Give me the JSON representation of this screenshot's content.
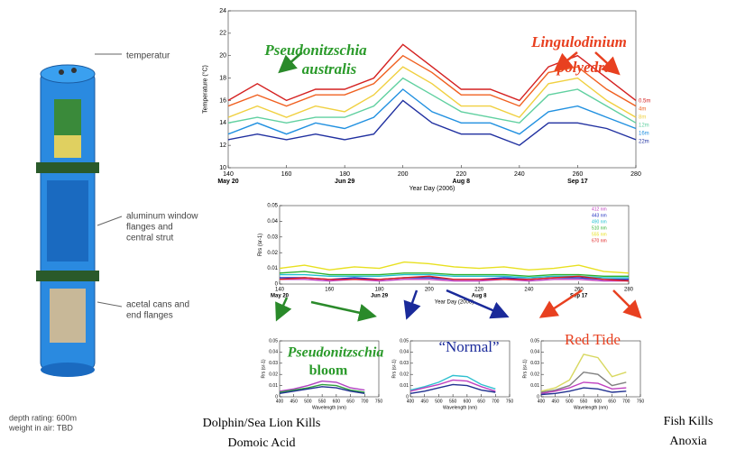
{
  "chart_data": [
    {
      "type": "line",
      "ylabel": "Temperature (°C)",
      "xlabel": "Year Day (2006)",
      "x": [
        140,
        150,
        160,
        170,
        180,
        190,
        200,
        210,
        220,
        230,
        240,
        250,
        260,
        270,
        280
      ],
      "xlim": [
        140,
        280
      ],
      "ylim": [
        10,
        24
      ],
      "xticks": [
        140,
        160,
        180,
        200,
        220,
        240,
        260,
        280
      ],
      "yticks": [
        10,
        12,
        14,
        16,
        18,
        20,
        22,
        24
      ],
      "date_ticks": [
        {
          "value": 140,
          "label": "May 20"
        },
        {
          "value": 180,
          "label": "Jun 29"
        },
        {
          "value": 220,
          "label": "Aug 8"
        },
        {
          "value": 260,
          "label": "Sep 17"
        }
      ],
      "series": [
        {
          "name": "0.5m",
          "color": "#d42020",
          "values": [
            16,
            17.5,
            16,
            17,
            17,
            18,
            21,
            19,
            17,
            17,
            16,
            19,
            20,
            18,
            16
          ]
        },
        {
          "name": "4m",
          "color": "#f06020",
          "values": [
            15.5,
            16.5,
            15.5,
            16.5,
            16.5,
            17.5,
            20,
            18.5,
            16.5,
            16.5,
            15.5,
            18.5,
            19,
            17,
            15.5
          ]
        },
        {
          "name": "8m",
          "color": "#f0d040",
          "values": [
            14.5,
            15.5,
            14.5,
            15.5,
            15,
            16.5,
            19,
            17.5,
            15.5,
            15.5,
            14.5,
            17.5,
            18,
            16,
            14.5
          ]
        },
        {
          "name": "12m",
          "color": "#60d0a0",
          "values": [
            14,
            14.5,
            14,
            14.5,
            14.5,
            15.5,
            18,
            16.5,
            15,
            14.5,
            14,
            16.5,
            17,
            15.5,
            14
          ]
        },
        {
          "name": "16m",
          "color": "#2090e0",
          "values": [
            13,
            14,
            13,
            14,
            13.5,
            14.5,
            17,
            15,
            14,
            14,
            13,
            15,
            15.5,
            14.5,
            13.5
          ]
        },
        {
          "name": "22m",
          "color": "#2030a0",
          "values": [
            12.5,
            13,
            12.5,
            13,
            12.5,
            13,
            16,
            14,
            13,
            13,
            12,
            14,
            14,
            13.5,
            12.5
          ]
        }
      ]
    },
    {
      "type": "line",
      "ylabel": "Rrs (sr-1)",
      "xlabel": "Year Day (2006)",
      "x": [
        140,
        150,
        160,
        170,
        180,
        190,
        200,
        210,
        220,
        230,
        240,
        250,
        260,
        270,
        280
      ],
      "xlim": [
        140,
        280
      ],
      "ylim": [
        0,
        0.05
      ],
      "xticks": [
        140,
        160,
        180,
        200,
        220,
        240,
        260,
        280
      ],
      "yticks": [
        0,
        0.01,
        0.02,
        0.03,
        0.04,
        0.05
      ],
      "date_ticks": [
        {
          "value": 140,
          "label": "May 20"
        },
        {
          "value": 180,
          "label": "Jun 29"
        },
        {
          "value": 220,
          "label": "Aug 8"
        },
        {
          "value": 260,
          "label": "Sep 17"
        }
      ],
      "series": [
        {
          "name": "412 nm",
          "color": "#c040c0",
          "values": [
            0.003,
            0.003,
            0.002,
            0.003,
            0.002,
            0.003,
            0.003,
            0.002,
            0.002,
            0.003,
            0.002,
            0.003,
            0.003,
            0.002,
            0.002
          ]
        },
        {
          "name": "443 nm",
          "color": "#2030c0",
          "values": [
            0.004,
            0.004,
            0.003,
            0.004,
            0.003,
            0.004,
            0.004,
            0.003,
            0.003,
            0.004,
            0.003,
            0.004,
            0.004,
            0.003,
            0.003
          ]
        },
        {
          "name": "490 nm",
          "color": "#20c0d0",
          "values": [
            0.006,
            0.006,
            0.005,
            0.005,
            0.005,
            0.006,
            0.006,
            0.005,
            0.005,
            0.005,
            0.004,
            0.005,
            0.005,
            0.004,
            0.004
          ]
        },
        {
          "name": "510 nm",
          "color": "#30b030",
          "values": [
            0.007,
            0.008,
            0.006,
            0.006,
            0.006,
            0.007,
            0.007,
            0.006,
            0.006,
            0.006,
            0.005,
            0.006,
            0.006,
            0.005,
            0.005
          ]
        },
        {
          "name": "555 nm",
          "color": "#e8e020",
          "values": [
            0.01,
            0.012,
            0.009,
            0.011,
            0.01,
            0.014,
            0.013,
            0.011,
            0.01,
            0.011,
            0.009,
            0.01,
            0.012,
            0.008,
            0.007
          ]
        },
        {
          "name": "670 nm",
          "color": "#e02020",
          "values": [
            0.003,
            0.004,
            0.003,
            0.003,
            0.003,
            0.004,
            0.005,
            0.003,
            0.003,
            0.003,
            0.003,
            0.004,
            0.005,
            0.003,
            0.002
          ]
        }
      ]
    },
    {
      "type": "line",
      "ylabel": "Rrs (sr-1)",
      "xlabel": "Wavelength (nm)",
      "x": [
        400,
        450,
        500,
        550,
        600,
        650,
        700
      ],
      "xlim": [
        400,
        750
      ],
      "ylim": [
        0,
        0.05
      ],
      "xticks": [
        400,
        450,
        500,
        550,
        600,
        650,
        700,
        750
      ],
      "yticks": [
        0,
        0.01,
        0.02,
        0.03,
        0.04,
        0.05
      ],
      "series": [
        {
          "color": "#b040c0",
          "values": [
            0.005,
            0.007,
            0.01,
            0.014,
            0.013,
            0.008,
            0.006
          ]
        },
        {
          "color": "#30a040",
          "values": [
            0.004,
            0.006,
            0.008,
            0.011,
            0.01,
            0.006,
            0.004
          ]
        },
        {
          "color": "#203090",
          "values": [
            0.003,
            0.005,
            0.007,
            0.009,
            0.008,
            0.005,
            0.003
          ]
        }
      ]
    },
    {
      "type": "line",
      "ylabel": "Rrs (sr-1)",
      "xlabel": "Wavelength (nm)",
      "x": [
        400,
        450,
        500,
        550,
        600,
        650,
        700
      ],
      "xlim": [
        400,
        750
      ],
      "ylim": [
        0,
        0.05
      ],
      "xticks": [
        400,
        450,
        500,
        550,
        600,
        650,
        700,
        750
      ],
      "yticks": [
        0,
        0.01,
        0.02,
        0.03,
        0.04,
        0.05
      ],
      "series": [
        {
          "color": "#30c0d0",
          "values": [
            0.006,
            0.009,
            0.013,
            0.019,
            0.018,
            0.011,
            0.007
          ]
        },
        {
          "color": "#c040c0",
          "values": [
            0.005,
            0.008,
            0.011,
            0.015,
            0.014,
            0.009,
            0.005
          ]
        },
        {
          "color": "#203090",
          "values": [
            0.003,
            0.005,
            0.008,
            0.011,
            0.01,
            0.006,
            0.004
          ]
        }
      ]
    },
    {
      "type": "line",
      "ylabel": "Rrs (sr-1)",
      "xlabel": "Wavelength (nm)",
      "x": [
        400,
        450,
        500,
        550,
        600,
        650,
        700
      ],
      "xlim": [
        400,
        750
      ],
      "ylim": [
        0,
        0.05
      ],
      "xticks": [
        400,
        450,
        500,
        550,
        600,
        650,
        700,
        750
      ],
      "yticks": [
        0,
        0.01,
        0.02,
        0.03,
        0.04,
        0.05
      ],
      "series": [
        {
          "color": "#d8d860",
          "values": [
            0.005,
            0.008,
            0.015,
            0.038,
            0.035,
            0.018,
            0.022
          ]
        },
        {
          "color": "#808080",
          "values": [
            0.004,
            0.006,
            0.01,
            0.022,
            0.02,
            0.01,
            0.013
          ]
        },
        {
          "color": "#c040c0",
          "values": [
            0.003,
            0.005,
            0.008,
            0.013,
            0.012,
            0.007,
            0.008
          ]
        },
        {
          "color": "#203090",
          "values": [
            0.002,
            0.003,
            0.005,
            0.008,
            0.007,
            0.004,
            0.005
          ]
        }
      ]
    }
  ],
  "diagram": {
    "labels": [
      "temperatur",
      "aluminum window",
      "flanges and",
      "central strut",
      "acetal cans and",
      "end flanges"
    ],
    "specs": [
      "depth rating: 600m",
      "weight in air: TBD"
    ]
  },
  "annotations": {
    "species1": [
      "Pseudonitzschia",
      "australis"
    ],
    "species2": [
      "Lingulodinium",
      "polyedra"
    ],
    "panel1": [
      "Pseudonitzschia",
      "bloom"
    ],
    "panel2": "“Normal”",
    "panel3": "Red Tide",
    "effect1": [
      "Dolphin/Sea Lion Kills",
      "Domoic Acid"
    ],
    "effect2": [
      "Fish Kills",
      "Anoxia"
    ]
  }
}
